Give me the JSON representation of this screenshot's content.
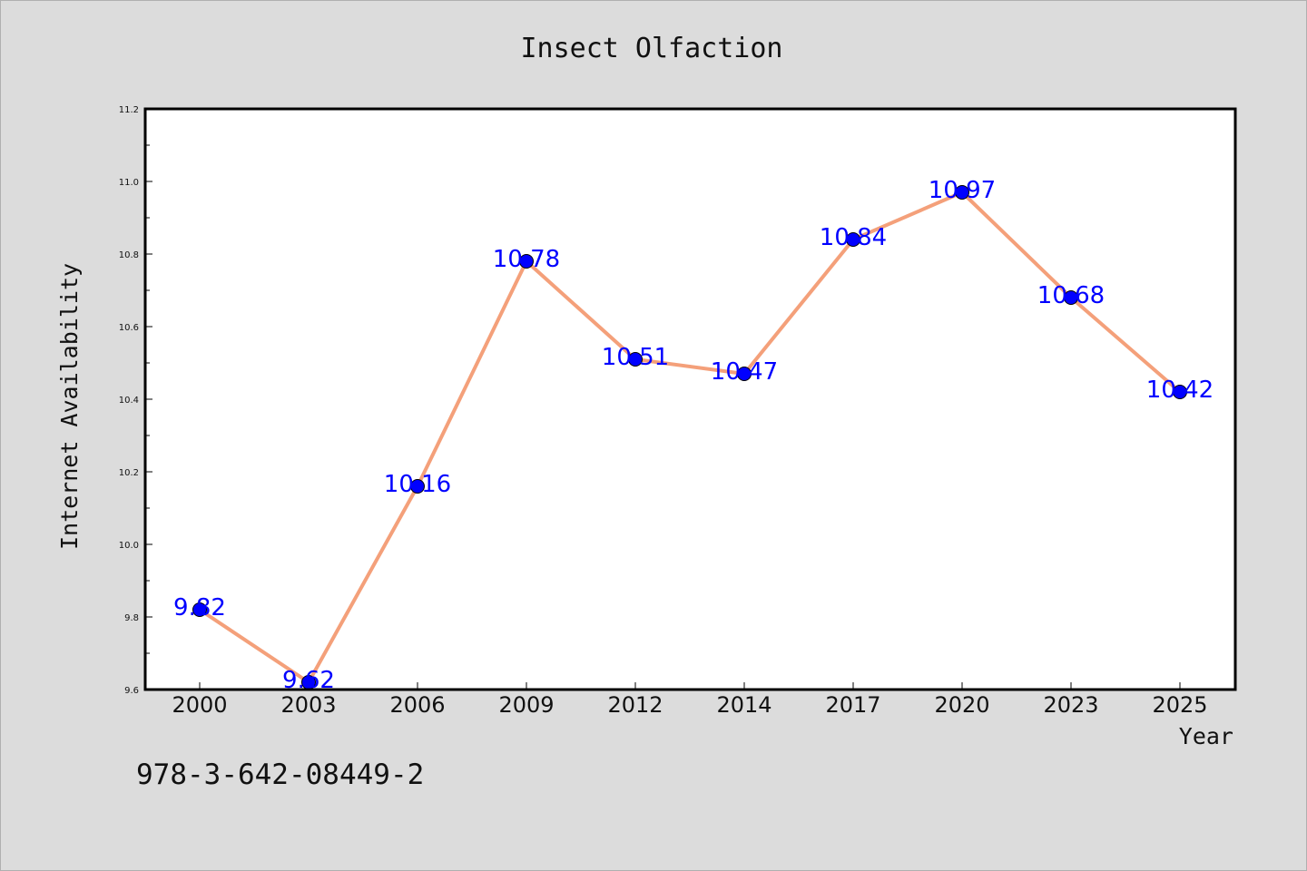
{
  "chart_data": {
    "type": "line",
    "title": "Insect Olfaction",
    "xlabel": "Year",
    "ylabel": "Internet Availability",
    "categories": [
      "2000",
      "2003",
      "2006",
      "2009",
      "2012",
      "2014",
      "2017",
      "2020",
      "2023",
      "2025"
    ],
    "series": [
      {
        "values": [
          9.82,
          9.62,
          10.16,
          10.78,
          10.51,
          10.47,
          10.84,
          10.97,
          10.68,
          10.42
        ],
        "labels": [
          "9.82",
          "9.62",
          "10.16",
          "10.78",
          "10.51",
          "10.47",
          "10.84",
          "10.97",
          "10.68",
          "10.42"
        ],
        "line_color": "#f4a07a",
        "marker_color": "#0000ff"
      }
    ],
    "ylim": [
      9.6,
      11.2
    ],
    "yticks": [
      "9.6",
      "9.8",
      "10.0",
      "10.2",
      "10.4",
      "10.6",
      "10.8",
      "11.0",
      "11.2"
    ],
    "grid": false,
    "legend": "none"
  },
  "footer": {
    "isbn": "978-3-642-08449-2"
  },
  "colors": {
    "background": "#dcdcdc",
    "plot_background": "#ffffff"
  }
}
